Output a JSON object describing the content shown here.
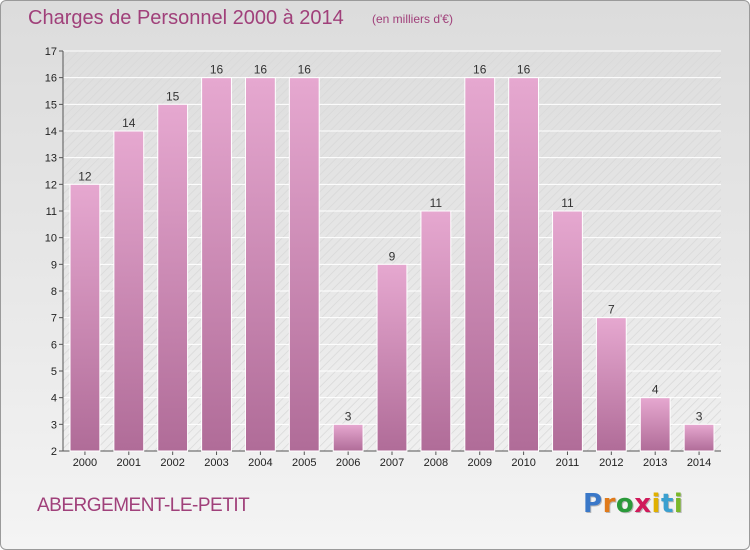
{
  "header": {
    "title": "Charges de Personnel 2000 à 2014",
    "subtitle": "(en milliers d'€)"
  },
  "footer": {
    "commune": "ABERGEMENT-LE-PETIT",
    "logo": {
      "letters": [
        "P",
        "r",
        "o",
        "x",
        "i",
        "t",
        "i"
      ],
      "colors": [
        "#3a78c8",
        "#e07a1a",
        "#2a9a3a",
        "#d01a5a",
        "#e0b000",
        "#3aa0d0",
        "#7ab82a"
      ]
    }
  },
  "colors": {
    "bar_fill_top": "#e6a8d0",
    "bar_fill_bottom": "#b06c98",
    "text": "#a0407a",
    "axis_text": "#222222"
  },
  "chart_data": {
    "type": "bar",
    "categories": [
      "2000",
      "2001",
      "2002",
      "2003",
      "2004",
      "2005",
      "2006",
      "2007",
      "2008",
      "2009",
      "2010",
      "2011",
      "2012",
      "2013",
      "2014"
    ],
    "values": [
      12,
      14,
      15,
      16,
      16,
      16,
      3,
      9,
      11,
      16,
      16,
      11,
      7,
      4,
      3
    ],
    "ylim": [
      2,
      17
    ],
    "yticks": [
      "2",
      "3",
      "4",
      "5",
      "6",
      "7",
      "8",
      "9",
      "10",
      "11",
      "12",
      "13",
      "14",
      "15",
      "16",
      "17"
    ],
    "grid": true,
    "title": "Charges de Personnel 2000 à 2014",
    "xlabel": "",
    "ylabel": ""
  }
}
